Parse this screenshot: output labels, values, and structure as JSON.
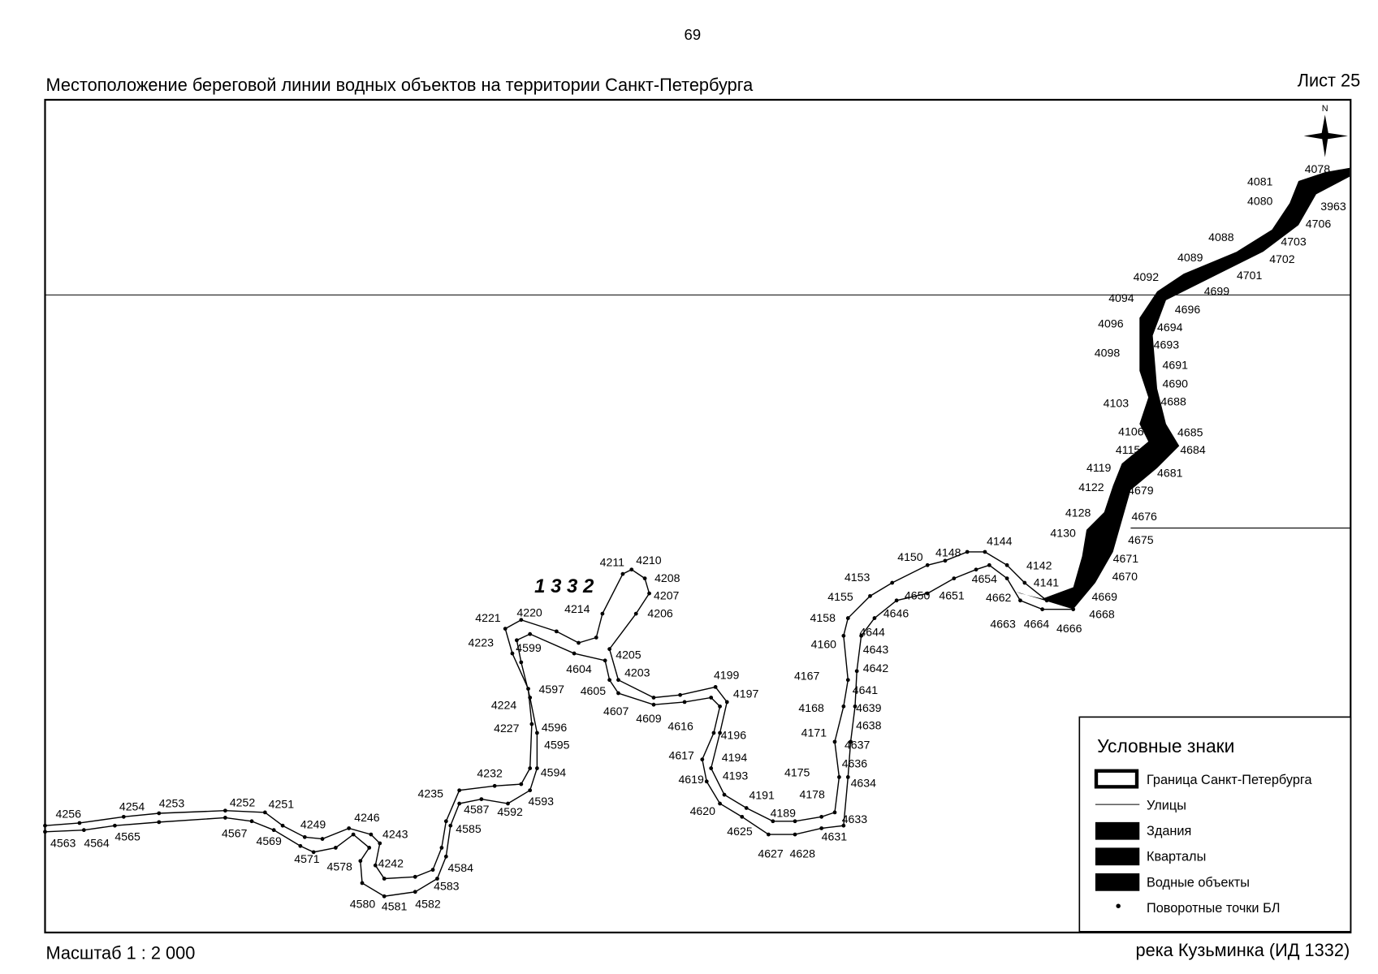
{
  "page_number": "69",
  "title": "Местоположение береговой линии водных объектов на территории Санкт-Петербурга",
  "sheet": "Лист 25",
  "scale": "Масштаб 1 : 2 000",
  "object_name": "река Кузьминка (ИД 1332)",
  "map": {
    "id_label": "1 3 3 2",
    "compass": "N",
    "points": [
      "4078",
      "4081",
      "4080",
      "3963",
      "4706",
      "4088",
      "4703",
      "4089",
      "4702",
      "4092",
      "4701",
      "4699",
      "4094",
      "4696",
      "4096",
      "4694",
      "4693",
      "4098",
      "4691",
      "4690",
      "4103",
      "4688",
      "4106",
      "4685",
      "4115",
      "4684",
      "4681",
      "4119",
      "4122",
      "4679",
      "4128",
      "4676",
      "4130",
      "4675",
      "4144",
      "4150",
      "4148",
      "4142",
      "4671",
      "4153",
      "4654",
      "4141",
      "4670",
      "4155",
      "4650",
      "4651",
      "4662",
      "4669",
      "4646",
      "4158",
      "4668",
      "4663",
      "4664",
      "4666",
      "4644",
      "4160",
      "4643",
      "4642",
      "4167",
      "4641",
      "4168",
      "4639",
      "4638",
      "4171",
      "4637",
      "4636",
      "4175",
      "4634",
      "4178",
      "4633",
      "4191",
      "4189",
      "4631",
      "4620",
      "4625",
      "4627",
      "4628",
      "4199",
      "4197",
      "4616",
      "4196",
      "4617",
      "4194",
      "4619",
      "4193",
      "4211",
      "4210",
      "4208",
      "4207",
      "4206",
      "4214",
      "4205",
      "4203",
      "4604",
      "4605",
      "4607",
      "4609",
      "4221",
      "4220",
      "4223",
      "4599",
      "4224",
      "4597",
      "4227",
      "4596",
      "4595",
      "4594",
      "4232",
      "4235",
      "4587",
      "4592",
      "4593",
      "4585",
      "4584",
      "4583",
      "4582",
      "4581",
      "4580",
      "4578",
      "4242",
      "4243",
      "4246",
      "4249",
      "4571",
      "4569",
      "4567",
      "4251",
      "4252",
      "4253",
      "4254",
      "4256",
      "4565",
      "4564",
      "4563"
    ]
  },
  "legend": {
    "title": "Условные знаки",
    "items": [
      "Граница Санкт-Петербурга",
      "Улицы",
      "Здания",
      "Кварталы",
      "Водные объекты",
      "Поворотные точки БЛ"
    ]
  }
}
